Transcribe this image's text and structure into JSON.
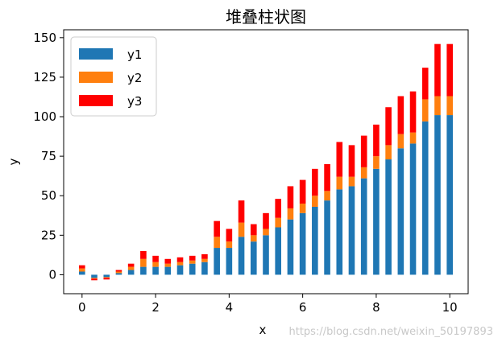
{
  "chart_data": {
    "type": "bar",
    "stacked": true,
    "title": "堆叠柱状图",
    "xlabel": "x",
    "ylabel": "y",
    "xlim": [
      -0.5,
      10.5
    ],
    "ylim": [
      -12,
      155
    ],
    "x_ticks": [
      0,
      2,
      4,
      6,
      8,
      10
    ],
    "y_ticks": [
      0,
      25,
      50,
      75,
      100,
      125,
      150
    ],
    "grid": false,
    "legend_position": "top-left",
    "x": [
      0.0,
      0.333,
      0.667,
      1.0,
      1.333,
      1.667,
      2.0,
      2.333,
      2.667,
      3.0,
      3.333,
      3.667,
      4.0,
      4.333,
      4.667,
      5.0,
      5.333,
      5.667,
      6.0,
      6.333,
      6.667,
      7.0,
      7.333,
      7.667,
      8.0,
      8.333,
      8.667,
      9.0,
      9.333,
      9.667,
      10.0
    ],
    "series": [
      {
        "name": "y1",
        "color": "#1f77b4",
        "values": [
          2,
          -2,
          -1.5,
          1,
          3,
          5,
          5,
          5,
          6,
          7,
          8,
          17,
          17,
          24,
          21,
          25,
          30,
          35,
          39,
          43,
          47,
          54,
          56,
          61,
          67,
          73,
          80,
          83,
          97,
          101,
          101
        ]
      },
      {
        "name": "y2",
        "color": "#ff7f0e",
        "values": [
          2,
          -0.5,
          -0.5,
          1,
          2,
          5,
          3,
          2,
          2,
          2,
          2,
          7,
          4,
          9,
          4,
          4,
          6,
          7,
          6,
          7,
          6,
          8,
          6,
          7,
          8,
          9,
          9,
          7,
          14,
          12,
          12
        ]
      },
      {
        "name": "y3",
        "color": "#ff0000",
        "values": [
          2,
          -1,
          -1,
          1,
          2,
          5,
          4,
          3,
          3,
          3,
          3,
          10,
          8,
          14,
          7,
          10,
          12,
          14,
          15,
          17,
          17,
          22,
          20,
          20,
          20,
          24,
          24,
          26,
          20,
          33,
          33
        ]
      }
    ]
  },
  "watermark": "https://blog.csdn.net/weixin_50197893"
}
